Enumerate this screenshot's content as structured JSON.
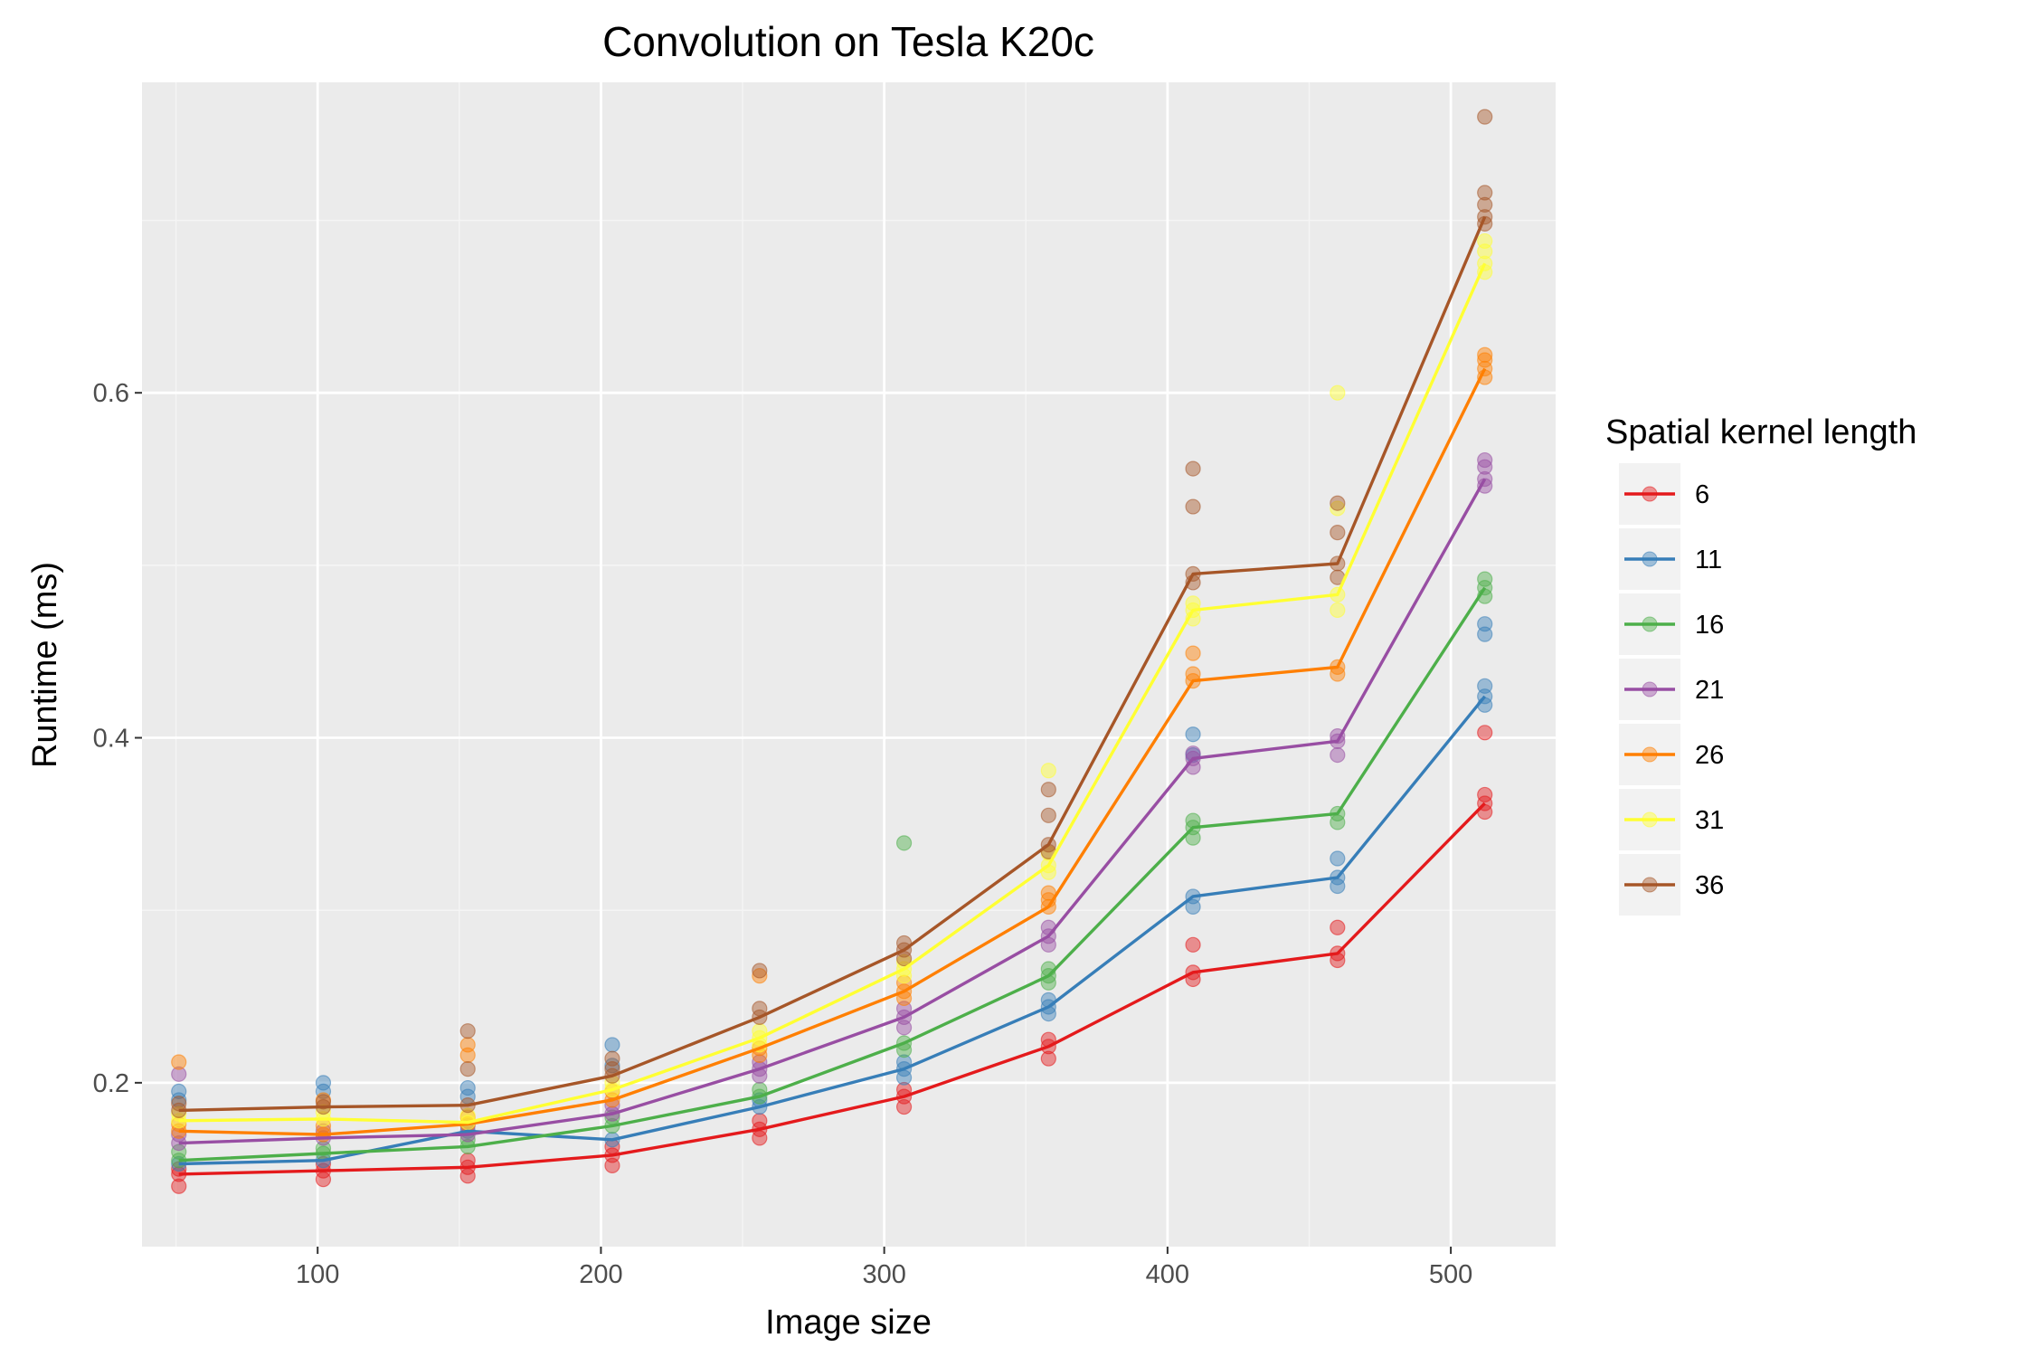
{
  "chart_data": {
    "type": "line",
    "title": "Convolution on Tesla K20c",
    "xlabel": "Image size",
    "ylabel": "Runtime (ms)",
    "xlim": [
      38,
      537
    ],
    "ylim": [
      0.105,
      0.78
    ],
    "x_ticks": [
      100,
      200,
      300,
      400,
      500
    ],
    "x_tick_labels": [
      "100",
      "200",
      "300",
      "400",
      "500"
    ],
    "y_ticks": [
      0.2,
      0.4,
      0.6
    ],
    "y_tick_labels": [
      "0.2",
      "0.4",
      "0.6"
    ],
    "grid": true,
    "legend": {
      "title": "Spatial kernel length",
      "placement": "right"
    },
    "x": [
      51,
      102,
      153,
      204,
      256,
      307,
      358,
      409,
      460,
      512
    ],
    "series": [
      {
        "name": "6",
        "color": "#e41a1c",
        "values": [
          0.147,
          0.149,
          0.151,
          0.158,
          0.173,
          0.192,
          0.221,
          0.264,
          0.275,
          0.362
        ],
        "points": [
          [
            51,
            0.14
          ],
          [
            51,
            0.147
          ],
          [
            51,
            0.15
          ],
          [
            102,
            0.144
          ],
          [
            102,
            0.149
          ],
          [
            102,
            0.153
          ],
          [
            153,
            0.146
          ],
          [
            153,
            0.151
          ],
          [
            153,
            0.155
          ],
          [
            204,
            0.152
          ],
          [
            204,
            0.158
          ],
          [
            204,
            0.163
          ],
          [
            256,
            0.168
          ],
          [
            256,
            0.173
          ],
          [
            256,
            0.178
          ],
          [
            307,
            0.186
          ],
          [
            307,
            0.192
          ],
          [
            307,
            0.196
          ],
          [
            358,
            0.214
          ],
          [
            358,
            0.221
          ],
          [
            358,
            0.225
          ],
          [
            409,
            0.26
          ],
          [
            409,
            0.264
          ],
          [
            409,
            0.28
          ],
          [
            460,
            0.271
          ],
          [
            460,
            0.275
          ],
          [
            460,
            0.29
          ],
          [
            512,
            0.357
          ],
          [
            512,
            0.362
          ],
          [
            512,
            0.367
          ],
          [
            512,
            0.403
          ]
        ]
      },
      {
        "name": "11",
        "color": "#377eb8",
        "values": [
          0.153,
          0.155,
          0.172,
          0.167,
          0.186,
          0.208,
          0.244,
          0.308,
          0.319,
          0.424
        ],
        "points": [
          [
            51,
            0.153
          ],
          [
            51,
            0.19
          ],
          [
            51,
            0.195
          ],
          [
            102,
            0.155
          ],
          [
            102,
            0.195
          ],
          [
            102,
            0.2
          ],
          [
            153,
            0.172
          ],
          [
            153,
            0.192
          ],
          [
            153,
            0.197
          ],
          [
            204,
            0.167
          ],
          [
            204,
            0.21
          ],
          [
            204,
            0.222
          ],
          [
            256,
            0.186
          ],
          [
            256,
            0.19
          ],
          [
            307,
            0.203
          ],
          [
            307,
            0.208
          ],
          [
            307,
            0.212
          ],
          [
            358,
            0.24
          ],
          [
            358,
            0.244
          ],
          [
            358,
            0.248
          ],
          [
            409,
            0.302
          ],
          [
            409,
            0.308
          ],
          [
            409,
            0.39
          ],
          [
            409,
            0.402
          ],
          [
            460,
            0.314
          ],
          [
            460,
            0.319
          ],
          [
            460,
            0.33
          ],
          [
            512,
            0.419
          ],
          [
            512,
            0.424
          ],
          [
            512,
            0.43
          ],
          [
            512,
            0.46
          ],
          [
            512,
            0.466
          ]
        ]
      },
      {
        "name": "16",
        "color": "#4daf4a",
        "values": [
          0.155,
          0.159,
          0.163,
          0.175,
          0.192,
          0.223,
          0.262,
          0.348,
          0.356,
          0.487
        ],
        "points": [
          [
            51,
            0.155
          ],
          [
            51,
            0.16
          ],
          [
            102,
            0.159
          ],
          [
            102,
            0.162
          ],
          [
            153,
            0.163
          ],
          [
            153,
            0.167
          ],
          [
            204,
            0.175
          ],
          [
            204,
            0.18
          ],
          [
            256,
            0.192
          ],
          [
            256,
            0.196
          ],
          [
            307,
            0.219
          ],
          [
            307,
            0.223
          ],
          [
            307,
            0.339
          ],
          [
            358,
            0.258
          ],
          [
            358,
            0.262
          ],
          [
            358,
            0.266
          ],
          [
            409,
            0.342
          ],
          [
            409,
            0.348
          ],
          [
            409,
            0.352
          ],
          [
            460,
            0.351
          ],
          [
            460,
            0.356
          ],
          [
            512,
            0.482
          ],
          [
            512,
            0.487
          ],
          [
            512,
            0.492
          ]
        ]
      },
      {
        "name": "21",
        "color": "#984ea3",
        "values": [
          0.165,
          0.168,
          0.17,
          0.182,
          0.208,
          0.238,
          0.285,
          0.388,
          0.398,
          0.55
        ],
        "points": [
          [
            51,
            0.165
          ],
          [
            51,
            0.17
          ],
          [
            51,
            0.205
          ],
          [
            102,
            0.168
          ],
          [
            102,
            0.172
          ],
          [
            153,
            0.17
          ],
          [
            153,
            0.175
          ],
          [
            204,
            0.182
          ],
          [
            204,
            0.187
          ],
          [
            256,
            0.204
          ],
          [
            256,
            0.208
          ],
          [
            256,
            0.212
          ],
          [
            307,
            0.232
          ],
          [
            307,
            0.238
          ],
          [
            307,
            0.243
          ],
          [
            358,
            0.28
          ],
          [
            358,
            0.285
          ],
          [
            358,
            0.29
          ],
          [
            409,
            0.383
          ],
          [
            409,
            0.388
          ],
          [
            409,
            0.391
          ],
          [
            460,
            0.39
          ],
          [
            460,
            0.398
          ],
          [
            460,
            0.401
          ],
          [
            512,
            0.546
          ],
          [
            512,
            0.55
          ],
          [
            512,
            0.557
          ],
          [
            512,
            0.561
          ]
        ]
      },
      {
        "name": "26",
        "color": "#ff7f00",
        "values": [
          0.172,
          0.17,
          0.176,
          0.19,
          0.22,
          0.253,
          0.302,
          0.433,
          0.441,
          0.614
        ],
        "points": [
          [
            51,
            0.172
          ],
          [
            51,
            0.176
          ],
          [
            51,
            0.212
          ],
          [
            102,
            0.17
          ],
          [
            102,
            0.175
          ],
          [
            102,
            0.19
          ],
          [
            153,
            0.176
          ],
          [
            153,
            0.18
          ],
          [
            153,
            0.216
          ],
          [
            153,
            0.222
          ],
          [
            204,
            0.19
          ],
          [
            204,
            0.195
          ],
          [
            256,
            0.216
          ],
          [
            256,
            0.22
          ],
          [
            256,
            0.262
          ],
          [
            307,
            0.249
          ],
          [
            307,
            0.253
          ],
          [
            307,
            0.258
          ],
          [
            358,
            0.302
          ],
          [
            358,
            0.306
          ],
          [
            358,
            0.31
          ],
          [
            409,
            0.433
          ],
          [
            409,
            0.437
          ],
          [
            409,
            0.449
          ],
          [
            460,
            0.437
          ],
          [
            460,
            0.441
          ],
          [
            512,
            0.609
          ],
          [
            512,
            0.614
          ],
          [
            512,
            0.619
          ],
          [
            512,
            0.622
          ]
        ]
      },
      {
        "name": "31",
        "color": "#ffff33",
        "values": [
          0.178,
          0.179,
          0.177,
          0.196,
          0.226,
          0.266,
          0.326,
          0.474,
          0.483,
          0.675
        ],
        "points": [
          [
            51,
            0.178
          ],
          [
            51,
            0.182
          ],
          [
            102,
            0.179
          ],
          [
            102,
            0.183
          ],
          [
            153,
            0.177
          ],
          [
            153,
            0.181
          ],
          [
            204,
            0.196
          ],
          [
            204,
            0.2
          ],
          [
            256,
            0.222
          ],
          [
            256,
            0.226
          ],
          [
            256,
            0.23
          ],
          [
            307,
            0.262
          ],
          [
            307,
            0.266
          ],
          [
            307,
            0.27
          ],
          [
            358,
            0.322
          ],
          [
            358,
            0.326
          ],
          [
            358,
            0.333
          ],
          [
            358,
            0.381
          ],
          [
            409,
            0.469
          ],
          [
            409,
            0.474
          ],
          [
            409,
            0.478
          ],
          [
            460,
            0.474
          ],
          [
            460,
            0.483
          ],
          [
            460,
            0.533
          ],
          [
            460,
            0.6
          ],
          [
            512,
            0.67
          ],
          [
            512,
            0.675
          ],
          [
            512,
            0.682
          ],
          [
            512,
            0.688
          ]
        ]
      },
      {
        "name": "36",
        "color": "#a65628",
        "values": [
          0.184,
          0.186,
          0.187,
          0.204,
          0.238,
          0.277,
          0.338,
          0.495,
          0.501,
          0.702
        ],
        "points": [
          [
            51,
            0.184
          ],
          [
            51,
            0.188
          ],
          [
            102,
            0.186
          ],
          [
            102,
            0.189
          ],
          [
            153,
            0.187
          ],
          [
            153,
            0.208
          ],
          [
            153,
            0.23
          ],
          [
            204,
            0.204
          ],
          [
            204,
            0.208
          ],
          [
            204,
            0.214
          ],
          [
            256,
            0.238
          ],
          [
            256,
            0.243
          ],
          [
            256,
            0.265
          ],
          [
            307,
            0.272
          ],
          [
            307,
            0.277
          ],
          [
            307,
            0.281
          ],
          [
            358,
            0.334
          ],
          [
            358,
            0.338
          ],
          [
            358,
            0.355
          ],
          [
            358,
            0.37
          ],
          [
            409,
            0.49
          ],
          [
            409,
            0.495
          ],
          [
            409,
            0.534
          ],
          [
            409,
            0.556
          ],
          [
            460,
            0.493
          ],
          [
            460,
            0.501
          ],
          [
            460,
            0.519
          ],
          [
            460,
            0.536
          ],
          [
            512,
            0.698
          ],
          [
            512,
            0.702
          ],
          [
            512,
            0.709
          ],
          [
            512,
            0.716
          ],
          [
            512,
            0.76
          ]
        ]
      }
    ]
  }
}
